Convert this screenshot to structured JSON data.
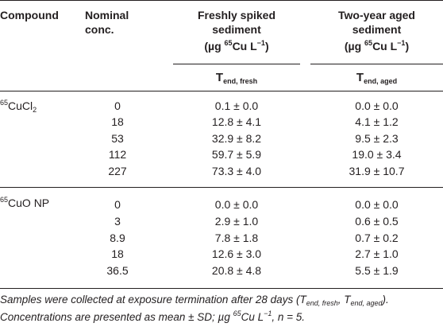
{
  "table": {
    "headers": {
      "compound": "Compound",
      "nominal_line1": "Nominal",
      "nominal_line2": "conc.",
      "fresh_line1": "Freshly spiked",
      "fresh_line2": "sediment",
      "fresh_unit_pre": "(µg ",
      "fresh_unit_sup": "65",
      "fresh_unit_mid": "Cu L",
      "fresh_unit_exp": "−1",
      "fresh_unit_post": ")",
      "aged_line1": "Two-year aged",
      "aged_line2": "sediment",
      "aged_unit_pre": "(µg ",
      "aged_unit_sup": "65",
      "aged_unit_mid": "Cu L",
      "aged_unit_exp": "−1",
      "aged_unit_post": ")",
      "t_fresh_main": "T",
      "t_fresh_sub": "end, fresh",
      "t_aged_main": "T",
      "t_aged_sub": "end, aged"
    },
    "groups": [
      {
        "compound_sup": "65",
        "compound_main": "CuCl",
        "compound_sub": "2",
        "rows": [
          {
            "conc": "0",
            "fresh": "0.1 ± 0.0",
            "aged": "0.0 ± 0.0"
          },
          {
            "conc": "18",
            "fresh": "12.8 ± 4.1",
            "aged": "4.1 ± 1.2"
          },
          {
            "conc": "53",
            "fresh": "32.9 ± 8.2",
            "aged": "9.5 ± 2.3"
          },
          {
            "conc": "112",
            "fresh": "59.7 ± 5.9",
            "aged": "19.0 ± 3.4"
          },
          {
            "conc": "227",
            "fresh": "73.3 ± 4.0",
            "aged": "31.9 ± 10.7"
          }
        ]
      },
      {
        "compound_sup": "65",
        "compound_main": "CuO NP",
        "compound_sub": "",
        "rows": [
          {
            "conc": "0",
            "fresh": "0.0 ± 0.0",
            "aged": "0.0 ± 0.0"
          },
          {
            "conc": "3",
            "fresh": "2.9 ± 1.0",
            "aged": "0.6 ± 0.5"
          },
          {
            "conc": "8.9",
            "fresh": "7.8 ± 1.8",
            "aged": "0.7 ± 0.2"
          },
          {
            "conc": "18",
            "fresh": "12.6 ± 3.0",
            "aged": "2.7 ± 1.0"
          },
          {
            "conc": "36.5",
            "fresh": "20.8 ± 4.8",
            "aged": "5.5 ± 1.9"
          }
        ]
      }
    ]
  },
  "footnote": {
    "line1_pre": "Samples were collected at exposure termination after 28 days (",
    "t1_main": "T",
    "t1_sub": "end, fresh",
    "sep": ", ",
    "t2_main": "T",
    "t2_sub": "end, aged",
    "line1_post": ").",
    "line2_pre": "Concentrations are presented as mean ± SD; µg ",
    "line2_sup": "65",
    "line2_mid": "Cu L",
    "line2_exp": "−1",
    "line2_post": ", n = 5."
  }
}
